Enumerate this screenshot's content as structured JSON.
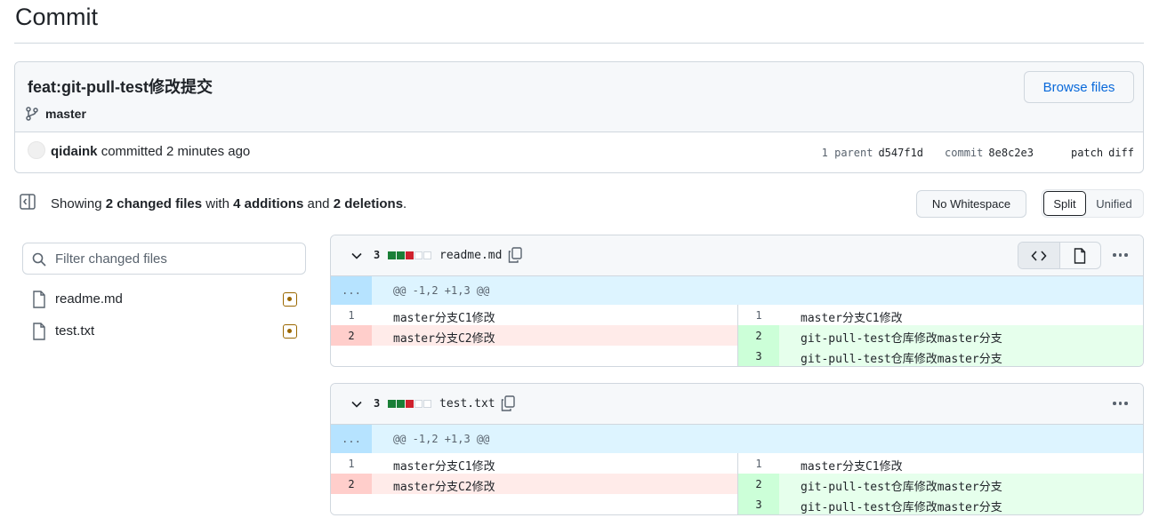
{
  "page": {
    "title": "Commit"
  },
  "commit": {
    "message": "feat:git-pull-test修改提交",
    "branch": "master",
    "browse_label": "Browse files",
    "author": "qidaink",
    "action_text": "committed 2 minutes ago",
    "parent_label": "1 parent",
    "parent_sha": "d547f1d",
    "commit_label": "commit",
    "commit_sha": "8e8c2e3",
    "patch_label": "patch",
    "diff_label": "diff"
  },
  "summary": {
    "prefix": "Showing",
    "changed": "2 changed files",
    "with": "with",
    "additions": "4 additions",
    "and": "and",
    "deletions": "2 deletions",
    "suffix": "."
  },
  "toolbar": {
    "whitespace_label": "No Whitespace",
    "split_label": "Split",
    "unified_label": "Unified"
  },
  "sidebar": {
    "filter_placeholder": "Filter changed files",
    "files": [
      {
        "name": "readme.md"
      },
      {
        "name": "test.txt"
      }
    ]
  },
  "diffs": [
    {
      "count": "3",
      "filename": "readme.md",
      "hunk_expand": "...",
      "hunk": "@@ -1,2 +1,3 @@",
      "left": [
        {
          "num": "1",
          "text": "master分支C1修改"
        },
        {
          "num": "2",
          "text": "master分支C2修改"
        }
      ],
      "right": [
        {
          "num": "1",
          "text": "master分支C1修改"
        },
        {
          "num": "2",
          "text": "git-pull-test仓库修改master分支"
        },
        {
          "num": "3",
          "text": "git-pull-test仓库修改master分支"
        }
      ]
    },
    {
      "count": "3",
      "filename": "test.txt",
      "hunk_expand": "...",
      "hunk": "@@ -1,2 +1,3 @@",
      "left": [
        {
          "num": "1",
          "text": "master分支C1修改"
        },
        {
          "num": "2",
          "text": "master分支C2修改"
        }
      ],
      "right": [
        {
          "num": "1",
          "text": "master分支C1修改"
        },
        {
          "num": "2",
          "text": "git-pull-test仓库修改master分支"
        },
        {
          "num": "3",
          "text": "git-pull-test仓库修改master分支"
        }
      ]
    }
  ]
}
